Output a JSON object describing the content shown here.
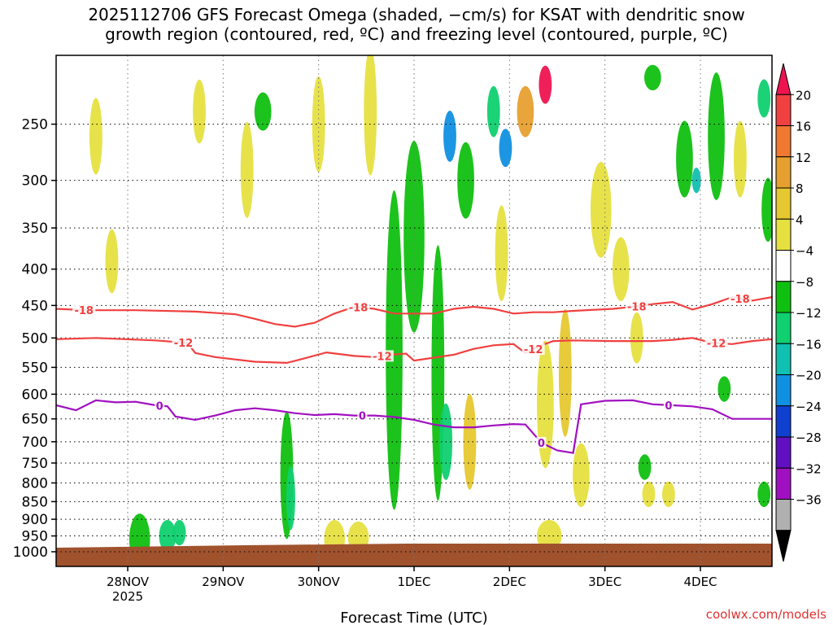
{
  "chart_data": {
    "type": "heatmap",
    "title_line1": "2025112706 GFS Forecast Omega (shaded, −cm/s) for KSAT with dendritic snow",
    "title_line2": "growth region (contoured, red, ºC) and freezing level (contoured, purple, ºC)",
    "xlabel": "Forecast Time (UTC)",
    "ylabel": "",
    "x_ticks": [
      {
        "label": "28NOV",
        "sub": "2025",
        "t": 18
      },
      {
        "label": "29NOV",
        "sub": "",
        "t": 42
      },
      {
        "label": "30NOV",
        "sub": "",
        "t": 66
      },
      {
        "label": "1DEC",
        "sub": "",
        "t": 90
      },
      {
        "label": "2DEC",
        "sub": "",
        "t": 114
      },
      {
        "label": "3DEC",
        "sub": "",
        "t": 138
      },
      {
        "label": "4DEC",
        "sub": "",
        "t": 162
      }
    ],
    "x_range_hours": [
      0,
      180
    ],
    "y_ticks": [
      250,
      300,
      350,
      400,
      450,
      500,
      550,
      600,
      650,
      700,
      750,
      800,
      850,
      900,
      950,
      1000
    ],
    "y_range_hPa": [
      200,
      1000
    ],
    "y_scale": "log-pressure",
    "grid": true,
    "colorbar": {
      "levels": [
        "20",
        "16",
        "12",
        "8",
        "4",
        "−4",
        "−8",
        "−12",
        "−16",
        "−20",
        "−24",
        "−28",
        "−32",
        "−36"
      ],
      "colors": [
        "#ee1450",
        "#f04040",
        "#f07830",
        "#e6a030",
        "#e6c830",
        "#e6e040",
        "#ffffff",
        "#10c010",
        "#10d070",
        "#10c0b0",
        "#1090e0",
        "#1040d0",
        "#6010c0",
        "#a010c0",
        "#b0b0b0",
        "#000000"
      ]
    },
    "contours": [
      {
        "name": "-18",
        "color": "#f04040",
        "label_hours": [
          7,
          76,
          146,
          172
        ],
        "points": [
          [
            0,
            455
          ],
          [
            8,
            457
          ],
          [
            20,
            457
          ],
          [
            35,
            459
          ],
          [
            45,
            463
          ],
          [
            50,
            470
          ],
          [
            55,
            478
          ],
          [
            60,
            482
          ],
          [
            65,
            476
          ],
          [
            70,
            462
          ],
          [
            75,
            452
          ],
          [
            80,
            455
          ],
          [
            85,
            462
          ],
          [
            90,
            462
          ],
          [
            95,
            462
          ],
          [
            100,
            455
          ],
          [
            105,
            452
          ],
          [
            110,
            455
          ],
          [
            115,
            462
          ],
          [
            120,
            460
          ],
          [
            125,
            460
          ],
          [
            130,
            458
          ],
          [
            140,
            455
          ],
          [
            145,
            452
          ],
          [
            150,
            448
          ],
          [
            155,
            445
          ],
          [
            160,
            456
          ],
          [
            165,
            448
          ],
          [
            170,
            438
          ],
          [
            175,
            443
          ],
          [
            180,
            438
          ]
        ]
      },
      {
        "name": "-12",
        "color": "#f04040",
        "label_hours": [
          32,
          82,
          120,
          166
        ],
        "points": [
          [
            0,
            502
          ],
          [
            10,
            500
          ],
          [
            25,
            504
          ],
          [
            33,
            508
          ],
          [
            35,
            525
          ],
          [
            40,
            532
          ],
          [
            50,
            540
          ],
          [
            58,
            542
          ],
          [
            62,
            535
          ],
          [
            68,
            524
          ],
          [
            75,
            530
          ],
          [
            80,
            532
          ],
          [
            84,
            528
          ],
          [
            88,
            526
          ],
          [
            90,
            538
          ],
          [
            95,
            533
          ],
          [
            100,
            528
          ],
          [
            105,
            518
          ],
          [
            110,
            512
          ],
          [
            115,
            510
          ],
          [
            118,
            525
          ],
          [
            122,
            512
          ],
          [
            125,
            505
          ],
          [
            130,
            504
          ],
          [
            140,
            505
          ],
          [
            150,
            505
          ],
          [
            155,
            503
          ],
          [
            160,
            500
          ],
          [
            165,
            508
          ],
          [
            170,
            510
          ],
          [
            175,
            505
          ],
          [
            180,
            502
          ]
        ]
      },
      {
        "name": "0",
        "color": "#a010c0",
        "label_hours": [
          26,
          77,
          122,
          154
        ],
        "points": [
          [
            0,
            622
          ],
          [
            5,
            632
          ],
          [
            10,
            612
          ],
          [
            15,
            616
          ],
          [
            20,
            615
          ],
          [
            25,
            622
          ],
          [
            28,
            624
          ],
          [
            30,
            645
          ],
          [
            35,
            652
          ],
          [
            40,
            643
          ],
          [
            45,
            632
          ],
          [
            50,
            628
          ],
          [
            55,
            632
          ],
          [
            60,
            638
          ],
          [
            65,
            642
          ],
          [
            70,
            640
          ],
          [
            75,
            643
          ],
          [
            80,
            643
          ],
          [
            85,
            646
          ],
          [
            90,
            652
          ],
          [
            95,
            662
          ],
          [
            100,
            668
          ],
          [
            105,
            668
          ],
          [
            110,
            664
          ],
          [
            115,
            661
          ],
          [
            118,
            662
          ],
          [
            122,
            702
          ],
          [
            126,
            720
          ],
          [
            130,
            726
          ],
          [
            132,
            620
          ],
          [
            138,
            613
          ],
          [
            145,
            612
          ],
          [
            150,
            620
          ],
          [
            155,
            622
          ],
          [
            160,
            624
          ],
          [
            165,
            630
          ],
          [
            170,
            650
          ],
          [
            175,
            650
          ],
          [
            180,
            650
          ]
        ]
      }
    ],
    "omega_blobs": [
      {
        "t": 21,
        "p": 960,
        "w": 4,
        "h": 80,
        "level": "-8"
      },
      {
        "t": 28,
        "p": 950,
        "w": 3,
        "h": 50,
        "level": "-12"
      },
      {
        "t": 31,
        "p": 940,
        "w": 2,
        "h": 40,
        "level": "-12"
      },
      {
        "t": 58,
        "p": 780,
        "w": 2,
        "h": 200,
        "level": "-8"
      },
      {
        "t": 59,
        "p": 840,
        "w": 1,
        "h": 100,
        "level": "-12"
      },
      {
        "t": 70,
        "p": 960,
        "w": 4,
        "h": 60,
        "level": "4"
      },
      {
        "t": 76,
        "p": 955,
        "w": 4,
        "h": 50,
        "level": "4"
      },
      {
        "t": 85,
        "p": 520,
        "w": 3,
        "h": 500,
        "level": "-8"
      },
      {
        "t": 90,
        "p": 360,
        "w": 4,
        "h": 300,
        "level": "-8"
      },
      {
        "t": 96,
        "p": 560,
        "w": 2,
        "h": 400,
        "level": "-8"
      },
      {
        "t": 98,
        "p": 700,
        "w": 2,
        "h": 120,
        "level": "-12"
      },
      {
        "t": 99,
        "p": 260,
        "w": 2,
        "h": 80,
        "level": "-20"
      },
      {
        "t": 103,
        "p": 300,
        "w": 3,
        "h": 120,
        "level": "-8"
      },
      {
        "t": 110,
        "p": 240,
        "w": 2,
        "h": 80,
        "level": "-12"
      },
      {
        "t": 113,
        "p": 270,
        "w": 2,
        "h": 60,
        "level": "-20"
      },
      {
        "t": 118,
        "p": 240,
        "w": 3,
        "h": 80,
        "level": "12"
      },
      {
        "t": 123,
        "p": 220,
        "w": 2,
        "h": 60,
        "level": "20"
      },
      {
        "t": 123,
        "p": 620,
        "w": 3,
        "h": 200,
        "level": "4"
      },
      {
        "t": 124,
        "p": 950,
        "w": 5,
        "h": 50,
        "level": "4"
      },
      {
        "t": 128,
        "p": 560,
        "w": 2,
        "h": 200,
        "level": "8"
      },
      {
        "t": 132,
        "p": 780,
        "w": 3,
        "h": 100,
        "level": "4"
      },
      {
        "t": 137,
        "p": 330,
        "w": 4,
        "h": 150,
        "level": "4"
      },
      {
        "t": 142,
        "p": 400,
        "w": 3,
        "h": 100,
        "level": "4"
      },
      {
        "t": 150,
        "p": 215,
        "w": 3,
        "h": 40,
        "level": "-8"
      },
      {
        "t": 158,
        "p": 280,
        "w": 3,
        "h": 120,
        "level": "-8"
      },
      {
        "t": 161,
        "p": 300,
        "w": 1,
        "h": 40,
        "level": "-16"
      },
      {
        "t": 166,
        "p": 260,
        "w": 3,
        "h": 200,
        "level": "-8"
      },
      {
        "t": 168,
        "p": 590,
        "w": 2,
        "h": 40,
        "level": "-8"
      },
      {
        "t": 172,
        "p": 280,
        "w": 2,
        "h": 120,
        "level": "4"
      },
      {
        "t": 178,
        "p": 230,
        "w": 2,
        "h": 60,
        "level": "-12"
      },
      {
        "t": 179,
        "p": 330,
        "w": 2,
        "h": 100,
        "level": "-8"
      },
      {
        "t": 10,
        "p": 260,
        "w": 2,
        "h": 120,
        "level": "4"
      },
      {
        "t": 14,
        "p": 390,
        "w": 2,
        "h": 100,
        "level": "4"
      },
      {
        "t": 36,
        "p": 240,
        "w": 2,
        "h": 100,
        "level": "4"
      },
      {
        "t": 48,
        "p": 290,
        "w": 2,
        "h": 150,
        "level": "4"
      },
      {
        "t": 52,
        "p": 240,
        "w": 3,
        "h": 60,
        "level": "-8"
      },
      {
        "t": 66,
        "p": 250,
        "w": 2,
        "h": 150,
        "level": "4"
      },
      {
        "t": 79,
        "p": 240,
        "w": 2,
        "h": 200,
        "level": "4"
      },
      {
        "t": 104,
        "p": 700,
        "w": 2,
        "h": 150,
        "level": "8"
      },
      {
        "t": 112,
        "p": 380,
        "w": 2,
        "h": 150,
        "level": "4"
      },
      {
        "t": 146,
        "p": 500,
        "w": 2,
        "h": 80,
        "level": "4"
      },
      {
        "t": 149,
        "p": 830,
        "w": 2,
        "h": 40,
        "level": "4"
      },
      {
        "t": 154,
        "p": 830,
        "w": 2,
        "h": 40,
        "level": "4"
      },
      {
        "t": 148,
        "p": 760,
        "w": 2,
        "h": 40,
        "level": "-8"
      },
      {
        "t": 178,
        "p": 830,
        "w": 2,
        "h": 40,
        "level": "-8"
      }
    ],
    "terrain_color": "#a0522d"
  },
  "credit": "coolwx.com/models"
}
